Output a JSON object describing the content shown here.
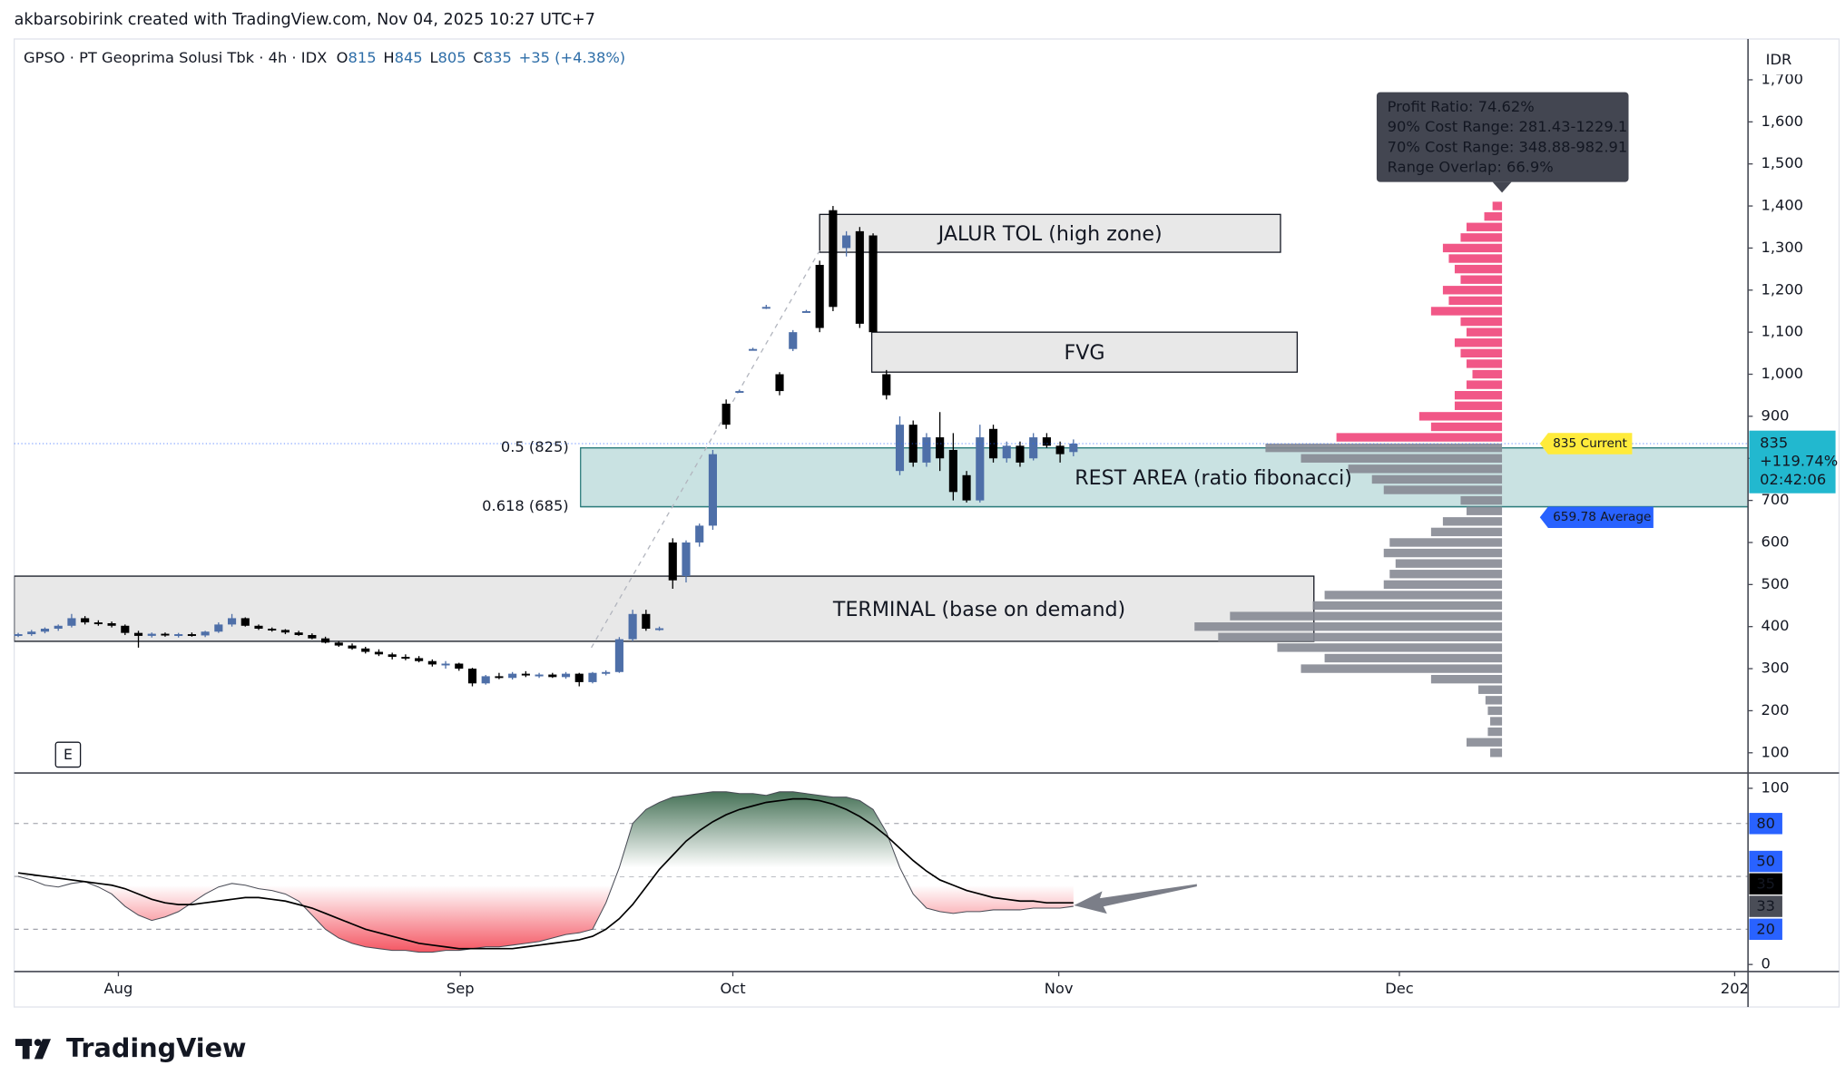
{
  "header": {
    "author_line": "akbarsobirink created with TradingView.com, Nov 04, 2025 10:27 UTC+7",
    "symbol": "GPSO · PT Geoprima Solusi Tbk · 4h · IDX",
    "ohlc": [
      {
        "label": "O",
        "value": "815"
      },
      {
        "label": "H",
        "value": "845"
      },
      {
        "label": "L",
        "value": "805"
      },
      {
        "label": "C",
        "value": "835"
      }
    ],
    "change": "+35 (+4.38%)"
  },
  "currency": "IDR",
  "marker": "E",
  "brand": "TradingView",
  "chart_data": [
    {
      "type": "candlestick",
      "up_color": "#4e6fa8",
      "down_color": "#000000",
      "xlim": [
        -0.3,
        129.5
      ],
      "ylim": [
        52,
        1797
      ],
      "grid": false,
      "yticks": [
        100,
        200,
        300,
        400,
        500,
        600,
        700,
        800,
        900,
        {
          "value": 1000,
          "label": "1,000"
        },
        {
          "value": 1100,
          "label": "1,100"
        },
        {
          "value": 1200,
          "label": "1,200"
        },
        {
          "value": 1300,
          "label": "1,300"
        },
        {
          "value": 1400,
          "label": "1,400"
        },
        {
          "value": 1500,
          "label": "1,500"
        },
        {
          "value": 1600,
          "label": "1,600"
        },
        {
          "value": 1700,
          "label": "1,700"
        }
      ],
      "open": [
        380,
        382,
        388,
        395,
        402,
        420,
        410,
        408,
        402,
        385,
        378,
        383,
        380,
        382,
        379,
        388,
        405,
        420,
        402,
        395,
        392,
        386,
        380,
        372,
        362,
        355,
        348,
        340,
        334,
        328,
        325,
        318,
        310,
        312,
        300,
        265,
        282,
        278,
        288,
        284,
        286,
        280,
        288,
        268,
        290,
        292,
        370,
        430,
        395,
        600,
        520,
        600,
        640,
        930,
        960,
        1060,
        1160,
        1000,
        1060,
        1150,
        1260,
        1390,
        1300,
        1340,
        1330,
        1000,
        770,
        880,
        790,
        850,
        820,
        760,
        700,
        870,
        800,
        830,
        800,
        850,
        830,
        815
      ],
      "high": [
        385,
        392,
        398,
        405,
        430,
        425,
        415,
        412,
        405,
        390,
        386,
        386,
        385,
        386,
        390,
        410,
        430,
        422,
        405,
        398,
        394,
        390,
        384,
        376,
        366,
        360,
        352,
        346,
        338,
        334,
        330,
        322,
        318,
        314,
        302,
        285,
        290,
        292,
        294,
        290,
        290,
        292,
        290,
        292,
        296,
        375,
        440,
        440,
        400,
        610,
        605,
        645,
        820,
        940,
        963,
        1063,
        1165,
        1005,
        1105,
        1153,
        1270,
        1400,
        1340,
        1350,
        1335,
        1010,
        900,
        890,
        860,
        910,
        860,
        770,
        880,
        880,
        840,
        840,
        860,
        860,
        840,
        845
      ],
      "low": [
        375,
        378,
        384,
        390,
        398,
        405,
        402,
        398,
        380,
        350,
        374,
        376,
        374,
        376,
        375,
        385,
        400,
        400,
        392,
        388,
        382,
        378,
        370,
        360,
        352,
        345,
        336,
        330,
        322,
        320,
        315,
        305,
        300,
        295,
        258,
        262,
        275,
        274,
        280,
        278,
        278,
        276,
        258,
        265,
        284,
        290,
        365,
        390,
        390,
        490,
        505,
        590,
        630,
        870,
        957,
        1057,
        1155,
        950,
        1055,
        1147,
        1100,
        1150,
        1280,
        1110,
        1100,
        940,
        760,
        780,
        780,
        770,
        700,
        695,
        695,
        790,
        790,
        780,
        795,
        825,
        790,
        805
      ],
      "close": [
        382,
        388,
        395,
        402,
        420,
        410,
        408,
        402,
        385,
        378,
        383,
        380,
        382,
        379,
        388,
        405,
        420,
        402,
        395,
        392,
        386,
        380,
        372,
        362,
        355,
        348,
        340,
        334,
        328,
        325,
        318,
        310,
        312,
        300,
        265,
        282,
        278,
        288,
        284,
        286,
        280,
        288,
        268,
        290,
        292,
        370,
        430,
        395,
        396,
        510,
        600,
        640,
        810,
        880,
        960,
        1060,
        1160,
        960,
        1100,
        1150,
        1110,
        1160,
        1330,
        1120,
        1100,
        950,
        880,
        790,
        850,
        800,
        720,
        700,
        850,
        800,
        830,
        790,
        850,
        830,
        810,
        835
      ],
      "zones": [
        {
          "label": "JALUR TOL (high zone)",
          "top": 1380,
          "bottom": 1290,
          "start": 60,
          "end": 94.5,
          "color": "#e8e8e8",
          "border": "#131722"
        },
        {
          "label": "FVG",
          "top": 1100,
          "bottom": 1005,
          "start": 63.9,
          "end": 95.75,
          "color": "#e8e8e8",
          "border": "#131722"
        },
        {
          "label": "REST AREA (ratio fibonacci)",
          "top": 825,
          "bottom": 685,
          "start": 42.1,
          "end": 129.5,
          "color": "#c9e2e2",
          "border": "#2c7d7d"
        },
        {
          "label": "TERMINAL (base on demand)",
          "top": 520,
          "bottom": 365,
          "start": -0.3,
          "end": 97,
          "color": "#e8e8e8",
          "border": "#131722"
        }
      ],
      "fib_levels": [
        {
          "label": "0.5 (825)",
          "value": 825,
          "start": 42.1,
          "color": "#2c7d7d"
        },
        {
          "label": "0.618 (685)",
          "value": 685,
          "start": 42.1,
          "color": "#2c7d7d"
        }
      ],
      "volume_profile": {
        "prices": [
          100,
          125,
          150,
          175,
          200,
          225,
          250,
          275,
          300,
          325,
          350,
          375,
          400,
          425,
          450,
          475,
          500,
          525,
          550,
          575,
          600,
          625,
          650,
          675,
          700,
          725,
          750,
          775,
          800,
          825,
          850,
          875,
          900,
          925,
          950,
          975,
          1000,
          1025,
          1050,
          1075,
          1100,
          1125,
          1150,
          1175,
          1200,
          1225,
          1250,
          1275,
          1300,
          1325,
          1350,
          1375,
          1400
        ],
        "volumes": [
          10,
          30,
          12,
          10,
          12,
          14,
          20,
          60,
          170,
          150,
          190,
          240,
          260,
          230,
          160,
          150,
          100,
          95,
          90,
          100,
          95,
          60,
          50,
          30,
          35,
          100,
          110,
          130,
          170,
          200,
          140,
          60,
          70,
          40,
          40,
          30,
          25,
          30,
          35,
          40,
          30,
          35,
          60,
          45,
          50,
          35,
          40,
          45,
          50,
          35,
          30,
          15,
          8
        ],
        "above_color": "#f0457a",
        "below_color": "#868993"
      },
      "tooltip": [
        "Profit Ratio: 74.62%",
        "90% Cost Range: 281.43-1229.1",
        "70% Cost Range: 348.88-982.91",
        "Range Overlap: 66.9%"
      ],
      "current": {
        "value": 835,
        "label": "835 Current",
        "color": "#ffeb3b"
      },
      "average": {
        "value": 659.78,
        "label": "659.78 Average",
        "color": "#2962ff"
      },
      "price_tag": {
        "value": 835,
        "lines": [
          "835",
          "+119.74%",
          "02:42:06"
        ],
        "color": "#22b8cf"
      }
    },
    {
      "type": "line",
      "xlim": [
        -0.3,
        129.5
      ],
      "ylim": [
        -4,
        108.7
      ],
      "yticks": [
        0,
        100
      ],
      "xticks": [
        {
          "value": 7.5,
          "label": "Aug"
        },
        {
          "value": 33.1,
          "label": "Sep"
        },
        {
          "value": 53.5,
          "label": "Oct"
        },
        {
          "value": 77.9,
          "label": "Nov"
        },
        {
          "value": 103.4,
          "label": "Dec"
        },
        {
          "value": 128.5,
          "label": "202"
        }
      ],
      "levels": [
        80,
        50,
        20
      ],
      "level_color": "#2962ff",
      "fill_top": "#3d6b4f",
      "fill_bottom": "#f23645",
      "series": [
        {
          "color": "#4a4d57",
          "values": [
            50,
            48,
            45,
            44,
            46,
            47,
            44,
            40,
            33,
            28,
            25,
            27,
            30,
            35,
            40,
            44,
            46,
            45,
            43,
            42,
            40,
            36,
            28,
            20,
            15,
            12,
            10,
            9,
            8,
            8,
            7,
            7,
            8,
            8,
            9,
            10,
            10,
            11,
            12,
            13,
            15,
            17,
            18,
            20,
            35,
            55,
            80,
            88,
            92,
            95,
            96,
            97,
            98,
            98,
            97,
            97,
            96,
            98,
            98,
            97,
            96,
            95,
            95,
            93,
            88,
            75,
            55,
            40,
            32,
            30,
            29,
            30,
            30,
            31,
            31,
            31,
            32,
            32,
            32,
            33
          ]
        },
        {
          "color": "#000000",
          "values": [
            52,
            51,
            50,
            49,
            48,
            47,
            46,
            45,
            43,
            40,
            37,
            35,
            34,
            34,
            35,
            36,
            37,
            38,
            38,
            37,
            36,
            34,
            32,
            29,
            26,
            23,
            20,
            18,
            16,
            14,
            12,
            11,
            10,
            9,
            9,
            9,
            9,
            9,
            10,
            11,
            12,
            13,
            14,
            16,
            20,
            26,
            34,
            44,
            54,
            62,
            70,
            76,
            81,
            85,
            88,
            90,
            92,
            93,
            94,
            94,
            93,
            91,
            88,
            84,
            79,
            73,
            66,
            59,
            53,
            48,
            45,
            42,
            40,
            38,
            37,
            36,
            36,
            35,
            35,
            35
          ]
        }
      ]
    }
  ]
}
